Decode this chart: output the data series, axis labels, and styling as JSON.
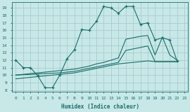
{
  "xlabel": "Humidex (Indice chaleur)",
  "bg_color": "#c8e8e8",
  "grid_color": "#a8cccc",
  "line_color": "#1a6e6a",
  "xlim": [
    -0.5,
    23.5
  ],
  "ylim": [
    7.8,
    19.8
  ],
  "xticks": [
    0,
    1,
    2,
    3,
    4,
    5,
    6,
    7,
    8,
    9,
    10,
    11,
    12,
    13,
    14,
    15,
    16,
    17,
    18,
    19,
    20,
    21,
    22,
    23
  ],
  "yticks": [
    8,
    9,
    10,
    11,
    12,
    13,
    14,
    15,
    16,
    17,
    18,
    19
  ],
  "main_x": [
    0,
    1,
    2,
    3,
    4,
    5,
    6,
    7,
    8,
    9,
    10,
    11,
    12,
    13,
    14,
    15,
    16,
    17,
    18,
    19,
    20,
    21,
    22
  ],
  "main_y": [
    12.0,
    11.0,
    11.0,
    9.9,
    8.3,
    8.3,
    10.0,
    12.2,
    13.4,
    16.1,
    16.0,
    17.2,
    19.2,
    19.0,
    18.3,
    19.2,
    19.2,
    16.8,
    17.0,
    14.7,
    15.0,
    14.7,
    11.9
  ],
  "line2_x": [
    0,
    1,
    2,
    3,
    4,
    5,
    6,
    7,
    8,
    9,
    10,
    11,
    12,
    13,
    14,
    15,
    16,
    17,
    18,
    19,
    20,
    21,
    22
  ],
  "line2_y": [
    10.0,
    10.1,
    10.2,
    10.3,
    10.4,
    10.5,
    10.6,
    10.7,
    10.8,
    11.0,
    11.2,
    11.5,
    11.7,
    12.0,
    12.3,
    14.8,
    15.0,
    15.2,
    15.3,
    12.7,
    15.1,
    12.7,
    12.0
  ],
  "line3_x": [
    0,
    1,
    2,
    3,
    4,
    5,
    6,
    7,
    8,
    9,
    10,
    11,
    12,
    13,
    14,
    15,
    16,
    17,
    18,
    19,
    20,
    21,
    22
  ],
  "line3_y": [
    10.0,
    10.05,
    10.1,
    10.15,
    10.2,
    10.25,
    10.3,
    10.4,
    10.5,
    10.7,
    10.9,
    11.1,
    11.3,
    11.5,
    11.7,
    13.3,
    13.5,
    13.7,
    13.9,
    11.8,
    11.8,
    11.8,
    11.8
  ],
  "line4_x": [
    0,
    1,
    2,
    3,
    4,
    5,
    6,
    7,
    8,
    9,
    10,
    11,
    12,
    13,
    14,
    15,
    16,
    17,
    18,
    19,
    20,
    21,
    22
  ],
  "line4_y": [
    9.5,
    9.6,
    9.7,
    9.8,
    9.9,
    10.0,
    10.1,
    10.2,
    10.3,
    10.5,
    10.7,
    10.9,
    11.1,
    11.3,
    11.5,
    11.6,
    11.7,
    11.8,
    11.9,
    11.8,
    11.8,
    11.8,
    11.8
  ]
}
